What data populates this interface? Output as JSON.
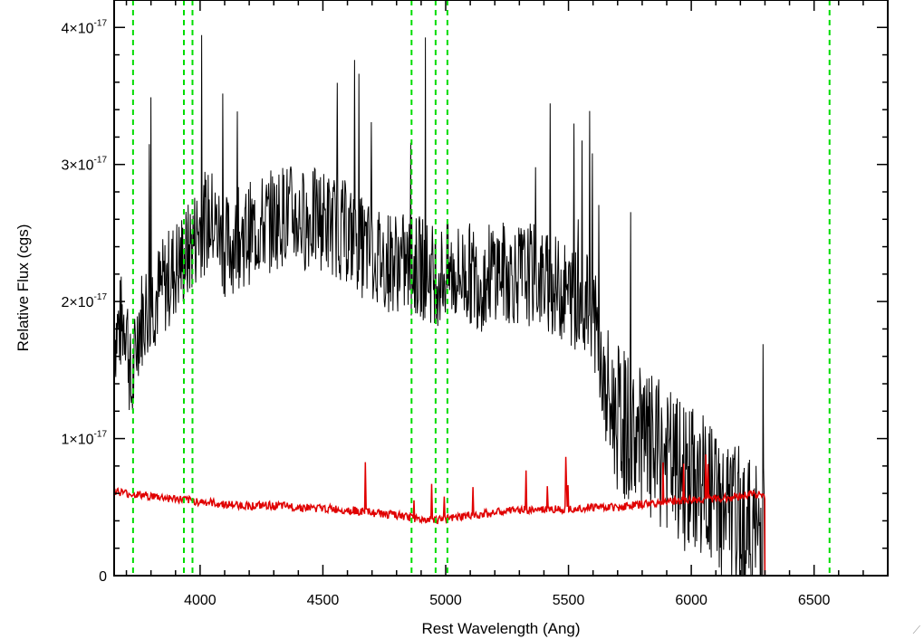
{
  "chart_data": {
    "type": "line",
    "xlabel": "Rest Wavelength (Ang)",
    "ylabel": "Relative Flux (cgs)",
    "xlim": [
      3650,
      6800
    ],
    "ylim": [
      0,
      4.2e-17
    ],
    "x_ticks": [
      {
        "value": 4000,
        "label": "4000"
      },
      {
        "value": 4500,
        "label": "4500"
      },
      {
        "value": 5000,
        "label": "5000"
      },
      {
        "value": 5500,
        "label": "5500"
      },
      {
        "value": 6000,
        "label": "6000"
      },
      {
        "value": 6500,
        "label": "6500"
      }
    ],
    "y_ticks": [
      {
        "value": 0,
        "mantissa": "0",
        "exponent": ""
      },
      {
        "value": 1e-17,
        "mantissa": "1×10",
        "exponent": "-17"
      },
      {
        "value": 2e-17,
        "mantissa": "2×10",
        "exponent": "-17"
      },
      {
        "value": 3e-17,
        "mantissa": "3×10",
        "exponent": "-17"
      },
      {
        "value": 4e-17,
        "mantissa": "4×10",
        "exponent": "-17"
      }
    ],
    "vlines": [
      3727,
      3934,
      3969,
      4861,
      4959,
      5007,
      6563
    ],
    "colors": {
      "flux": "#000000",
      "error": "#e00000",
      "vlines": "#00dd00"
    },
    "series": [
      {
        "key": "flux",
        "color": "#000000",
        "points": [
          [
            3650,
            1.75
          ],
          [
            3700,
            1.9
          ],
          [
            3720,
            1.3
          ],
          [
            3750,
            1.85
          ],
          [
            3800,
            2.0
          ],
          [
            3850,
            2.1
          ],
          [
            3900,
            2.25
          ],
          [
            3950,
            2.35
          ],
          [
            4000,
            2.55
          ],
          [
            4050,
            2.6
          ],
          [
            4100,
            2.4
          ],
          [
            4150,
            2.45
          ],
          [
            4200,
            2.5
          ],
          [
            4250,
            2.55
          ],
          [
            4300,
            2.6
          ],
          [
            4350,
            2.65
          ],
          [
            4400,
            2.6
          ],
          [
            4450,
            2.6
          ],
          [
            4500,
            2.6
          ],
          [
            4550,
            2.55
          ],
          [
            4600,
            2.5
          ],
          [
            4650,
            2.4
          ],
          [
            4700,
            2.35
          ],
          [
            4750,
            2.3
          ],
          [
            4800,
            2.3
          ],
          [
            4850,
            2.25
          ],
          [
            4900,
            2.25
          ],
          [
            4950,
            2.2
          ],
          [
            5000,
            2.2
          ],
          [
            5050,
            2.2
          ],
          [
            5100,
            2.2
          ],
          [
            5150,
            2.15
          ],
          [
            5200,
            2.25
          ],
          [
            5250,
            2.2
          ],
          [
            5300,
            2.2
          ],
          [
            5350,
            2.2
          ],
          [
            5400,
            2.15
          ],
          [
            5450,
            2.1
          ],
          [
            5500,
            2.05
          ],
          [
            5550,
            2.0
          ],
          [
            5600,
            1.95
          ],
          [
            5650,
            1.3
          ],
          [
            5700,
            1.15
          ],
          [
            5750,
            1.05
          ],
          [
            5800,
            0.95
          ],
          [
            5850,
            0.9
          ],
          [
            5900,
            0.85
          ],
          [
            5950,
            0.75
          ],
          [
            6000,
            0.7
          ],
          [
            6050,
            0.65
          ],
          [
            6100,
            0.55
          ],
          [
            6150,
            0.45
          ],
          [
            6200,
            0.4
          ],
          [
            6250,
            0.3
          ],
          [
            6300,
            0.3
          ]
        ]
      },
      {
        "key": "error",
        "color": "#e00000",
        "points": [
          [
            3650,
            0.62
          ],
          [
            3700,
            0.6
          ],
          [
            3800,
            0.58
          ],
          [
            3900,
            0.56
          ],
          [
            4000,
            0.54
          ],
          [
            4100,
            0.52
          ],
          [
            4200,
            0.51
          ],
          [
            4300,
            0.51
          ],
          [
            4400,
            0.5
          ],
          [
            4500,
            0.49
          ],
          [
            4600,
            0.48
          ],
          [
            4700,
            0.46
          ],
          [
            4800,
            0.44
          ],
          [
            4900,
            0.41
          ],
          [
            5000,
            0.41
          ],
          [
            5100,
            0.44
          ],
          [
            5200,
            0.46
          ],
          [
            5300,
            0.48
          ],
          [
            5400,
            0.48
          ],
          [
            5500,
            0.49
          ],
          [
            5600,
            0.5
          ],
          [
            5700,
            0.5
          ],
          [
            5800,
            0.52
          ],
          [
            5900,
            0.54
          ],
          [
            6000,
            0.55
          ],
          [
            6100,
            0.56
          ],
          [
            6200,
            0.58
          ],
          [
            6250,
            0.6
          ],
          [
            6300,
            0.58
          ]
        ]
      }
    ],
    "error_tail": [
      [
        6300,
        0.0
      ],
      [
        6800,
        0.0
      ]
    ]
  }
}
